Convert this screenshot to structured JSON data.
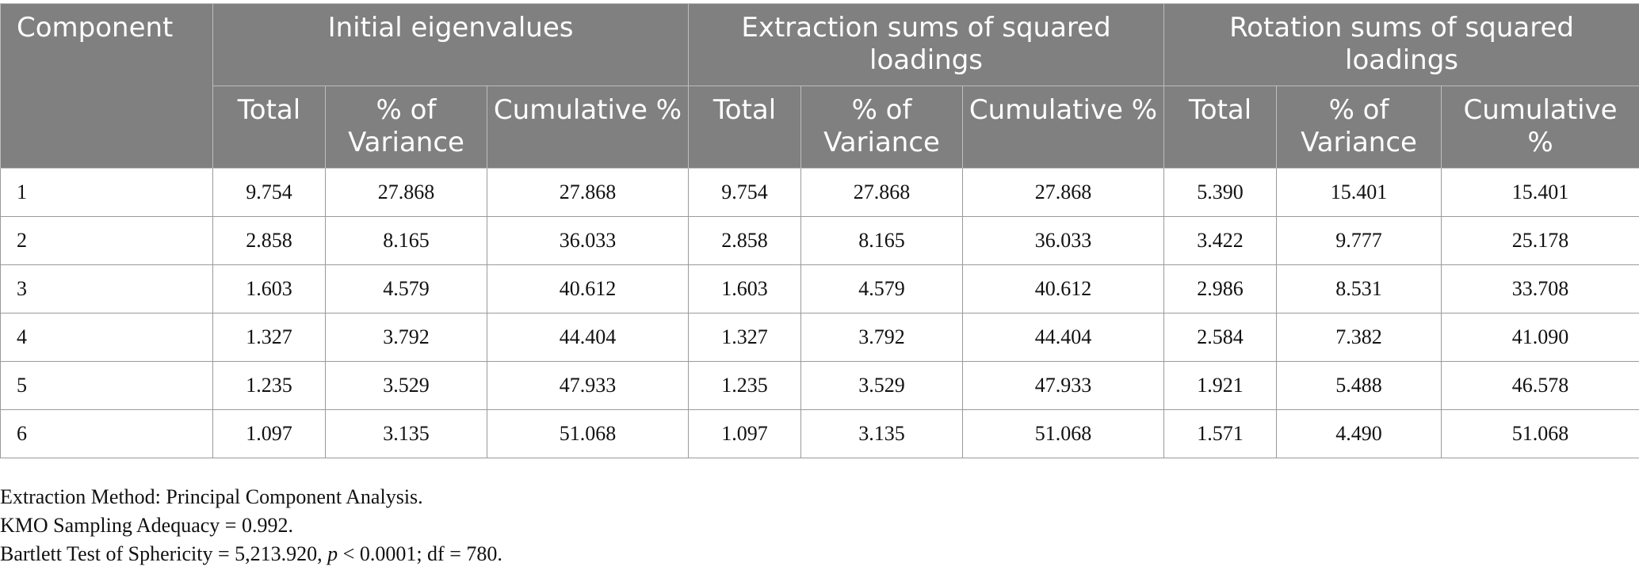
{
  "table": {
    "component_header": "Component",
    "group_headers": [
      "Initial eigenvalues",
      "Extraction sums of squared loadings",
      "Rotation sums of squared loadings"
    ],
    "sub_headers": [
      "Total",
      "% of Variance",
      "Cumulative %"
    ],
    "rows": [
      [
        "1",
        "9.754",
        "27.868",
        "27.868",
        "9.754",
        "27.868",
        "27.868",
        "5.390",
        "15.401",
        "15.401"
      ],
      [
        "2",
        "2.858",
        "8.165",
        "36.033",
        "2.858",
        "8.165",
        "36.033",
        "3.422",
        "9.777",
        "25.178"
      ],
      [
        "3",
        "1.603",
        "4.579",
        "40.612",
        "1.603",
        "4.579",
        "40.612",
        "2.986",
        "8.531",
        "33.708"
      ],
      [
        "4",
        "1.327",
        "3.792",
        "44.404",
        "1.327",
        "3.792",
        "44.404",
        "2.584",
        "7.382",
        "41.090"
      ],
      [
        "5",
        "1.235",
        "3.529",
        "47.933",
        "1.235",
        "3.529",
        "47.933",
        "1.921",
        "5.488",
        "46.578"
      ],
      [
        "6",
        "1.097",
        "3.135",
        "51.068",
        "1.097",
        "3.135",
        "51.068",
        "1.571",
        "4.490",
        "51.068"
      ]
    ]
  },
  "notes": {
    "extraction_method": "Extraction Method: Principal Component Analysis.",
    "kmo": "KMO Sampling Adequacy = 0.992.",
    "bartlett_prefix": "Bartlett Test of Sphericity = 5,213.920, ",
    "bartlett_p": "p",
    "bartlett_suffix": " < 0.0001; df = 780."
  }
}
